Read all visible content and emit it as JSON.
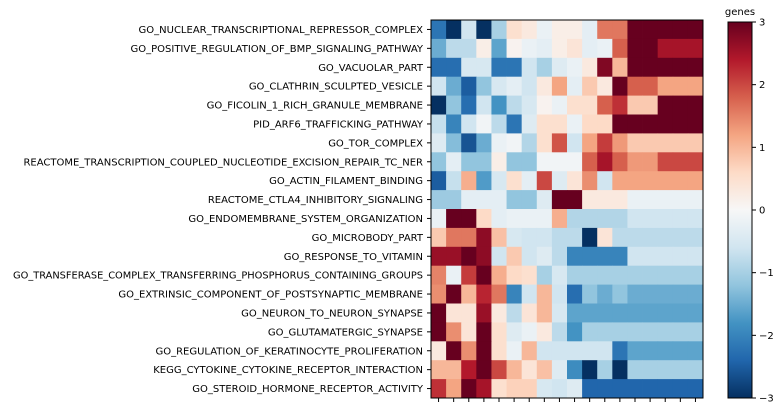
{
  "chart_data": {
    "type": "heatmap",
    "colorbar_title": "genes",
    "colorbar_ticks": [
      3,
      2,
      1,
      0,
      -1,
      -2,
      -3
    ],
    "colorbar_tick_labels": [
      "3",
      "2",
      "1",
      "0",
      "−1",
      "−2",
      "−3"
    ],
    "zlim": [
      -3,
      3
    ],
    "colormap": "RdBu_r",
    "rows": [
      "GO_NUCLEAR_TRANSCRIPTIONAL_REPRESSOR_COMPLEX",
      "GO_POSITIVE_REGULATION_OF_BMP_SIGNALING_PATHWAY",
      "GO_VACUOLAR_PART",
      "GO_CLATHRIN_SCULPTED_VESICLE",
      "GO_FICOLIN_1_RICH_GRANULE_MEMBRANE",
      "PID_ARF6_TRAFFICKING_PATHWAY",
      "GO_TOR_COMPLEX",
      "REACTOME_TRANSCRIPTION_COUPLED_NUCLEOTIDE_EXCISION_REPAIR_TC_NER",
      "GO_ACTIN_FILAMENT_BINDING",
      "REACTOME_CTLA4_INHIBITORY_SIGNALING",
      "GO_ENDOMEMBRANE_SYSTEM_ORGANIZATION",
      "GO_MICROBODY_PART",
      "GO_RESPONSE_TO_VITAMIN",
      "GO_TRANSFERASE_COMPLEX_TRANSFERRING_PHOSPHORUS_CONTAINING_GROUPS",
      "GO_EXTRINSIC_COMPONENT_OF_POSTSYNAPTIC_MEMBRANE",
      "GO_NEURON_TO_NEURON_SYNAPSE",
      "GO_GLUTAMATERGIC_SYNAPSE",
      "GO_REGULATION_OF_KERATINOCYTE_PROLIFERATION",
      "KEGG_CYTOKINE_CYTOKINE_RECEPTOR_INTERACTION",
      "GO_STEROID_HORMONE_RECEPTOR_ACTIVITY"
    ],
    "n_columns": 18,
    "values": [
      [
        -2.2,
        -3.0,
        -0.6,
        -3.0,
        -1.0,
        0.5,
        0.3,
        -0.2,
        0.2,
        0.2,
        -0.3,
        1.6,
        1.6,
        3.0,
        3.0,
        3.0,
        3.0,
        3.0
      ],
      [
        -1.5,
        -0.8,
        -0.8,
        0.2,
        -1.6,
        0.1,
        -0.2,
        -0.3,
        0.2,
        0.4,
        -0.3,
        -0.2,
        1.8,
        3.0,
        3.0,
        2.5,
        2.5,
        2.5
      ],
      [
        -2.3,
        -2.3,
        -0.5,
        -0.5,
        -2.2,
        -2.2,
        -0.6,
        -1.0,
        -0.4,
        -0.2,
        0.3,
        2.8,
        1.0,
        3.0,
        3.0,
        3.0,
        3.0,
        3.0
      ],
      [
        -0.6,
        -1.5,
        -2.5,
        -1.2,
        -0.5,
        -0.3,
        -0.6,
        0.3,
        1.2,
        -0.3,
        0.8,
        0.3,
        3.0,
        1.8,
        1.8,
        1.2,
        1.2,
        1.2
      ],
      [
        -3.0,
        -1.2,
        -2.3,
        -0.6,
        -1.8,
        -0.8,
        -0.5,
        0.1,
        -0.2,
        0.5,
        0.5,
        1.8,
        2.2,
        0.8,
        0.8,
        3.0,
        3.0,
        3.0
      ],
      [
        -0.7,
        -2.0,
        -0.6,
        -0.1,
        -0.8,
        -2.2,
        -0.4,
        0.5,
        0.5,
        -0.2,
        0.6,
        0.6,
        3.0,
        3.0,
        3.0,
        3.0,
        3.0,
        3.0
      ],
      [
        -0.4,
        -1.3,
        -2.6,
        -1.5,
        -0.2,
        -0.1,
        -0.9,
        0.5,
        1.9,
        -0.6,
        1.2,
        2.1,
        1.3,
        0.8,
        0.8,
        0.8,
        0.8,
        0.8
      ],
      [
        -1.2,
        -0.3,
        -1.2,
        -1.2,
        0.2,
        -1.2,
        -1.2,
        -0.1,
        -0.1,
        -0.1,
        1.8,
        2.5,
        1.8,
        1.3,
        1.3,
        2.0,
        2.0,
        2.0
      ],
      [
        -2.5,
        -0.7,
        1.1,
        -1.7,
        -0.5,
        0.5,
        -0.3,
        2.0,
        -0.4,
        0.4,
        1.4,
        -0.6,
        1.2,
        1.2,
        1.2,
        1.2,
        1.2,
        1.2
      ],
      [
        -1.1,
        -1.1,
        -0.3,
        -0.3,
        -0.3,
        -1.2,
        -1.2,
        -0.4,
        3.0,
        3.0,
        0.3,
        0.3,
        0.3,
        -0.2,
        -0.2,
        -0.2,
        -0.2,
        -0.2
      ],
      [
        -0.2,
        3.0,
        3.0,
        0.6,
        -0.3,
        -0.2,
        -0.2,
        -0.2,
        1.1,
        -0.9,
        -0.9,
        -0.9,
        -0.9,
        -0.6,
        -0.6,
        -0.6,
        -0.6,
        -0.6
      ],
      [
        0.8,
        1.6,
        1.6,
        2.7,
        0.9,
        -0.5,
        -0.6,
        -0.6,
        -0.8,
        -0.8,
        -3.0,
        0.4,
        -0.8,
        -0.8,
        -0.8,
        -0.8,
        -0.8,
        -0.8
      ],
      [
        2.6,
        2.6,
        3.0,
        2.7,
        -0.6,
        0.8,
        -0.6,
        -0.4,
        -0.8,
        -2.0,
        -2.0,
        -2.0,
        -2.0,
        -0.6,
        -0.6,
        -0.6,
        -0.6,
        -0.6
      ],
      [
        1.5,
        -0.2,
        2.1,
        3.0,
        1.1,
        0.6,
        0.5,
        -1.0,
        -0.5,
        -1.0,
        -1.0,
        -1.0,
        -1.0,
        -1.0,
        -1.0,
        -1.0,
        -1.0,
        -1.0
      ],
      [
        1.4,
        3.0,
        1.0,
        2.3,
        1.6,
        -2.0,
        -0.6,
        1.0,
        -0.6,
        -2.3,
        -1.2,
        -1.5,
        -1.2,
        -1.5,
        -1.5,
        -1.5,
        -1.5,
        -1.5
      ],
      [
        3.0,
        0.4,
        0.4,
        2.6,
        0.3,
        -0.8,
        0.4,
        1.0,
        -0.5,
        -1.6,
        -1.6,
        -1.6,
        -1.6,
        -1.6,
        -1.6,
        -1.6,
        -1.6,
        -1.6
      ],
      [
        3.0,
        1.4,
        0.4,
        3.0,
        0.5,
        -0.4,
        -0.2,
        0.3,
        -0.8,
        -1.8,
        -1.0,
        -1.0,
        -1.0,
        -1.0,
        -1.0,
        -1.0,
        -1.0,
        -1.0
      ],
      [
        0.3,
        3.0,
        1.4,
        3.0,
        0.5,
        -0.2,
        1.0,
        -0.6,
        -0.6,
        -0.6,
        -0.6,
        -0.6,
        -2.2,
        -1.6,
        -1.6,
        -1.6,
        -1.6,
        -1.6
      ],
      [
        1.0,
        1.0,
        2.4,
        3.0,
        2.0,
        1.0,
        0.4,
        0.9,
        -0.4,
        -1.9,
        -3.0,
        -1.0,
        -3.0,
        -1.0,
        -1.0,
        -1.0,
        -1.0,
        -1.0
      ],
      [
        2.2,
        1.2,
        3.0,
        2.5,
        0.5,
        0.7,
        0.7,
        -0.5,
        -0.6,
        -0.4,
        -2.4,
        -2.4,
        -2.4,
        -2.4,
        -2.4,
        -2.4,
        -2.4,
        -2.4
      ]
    ]
  }
}
